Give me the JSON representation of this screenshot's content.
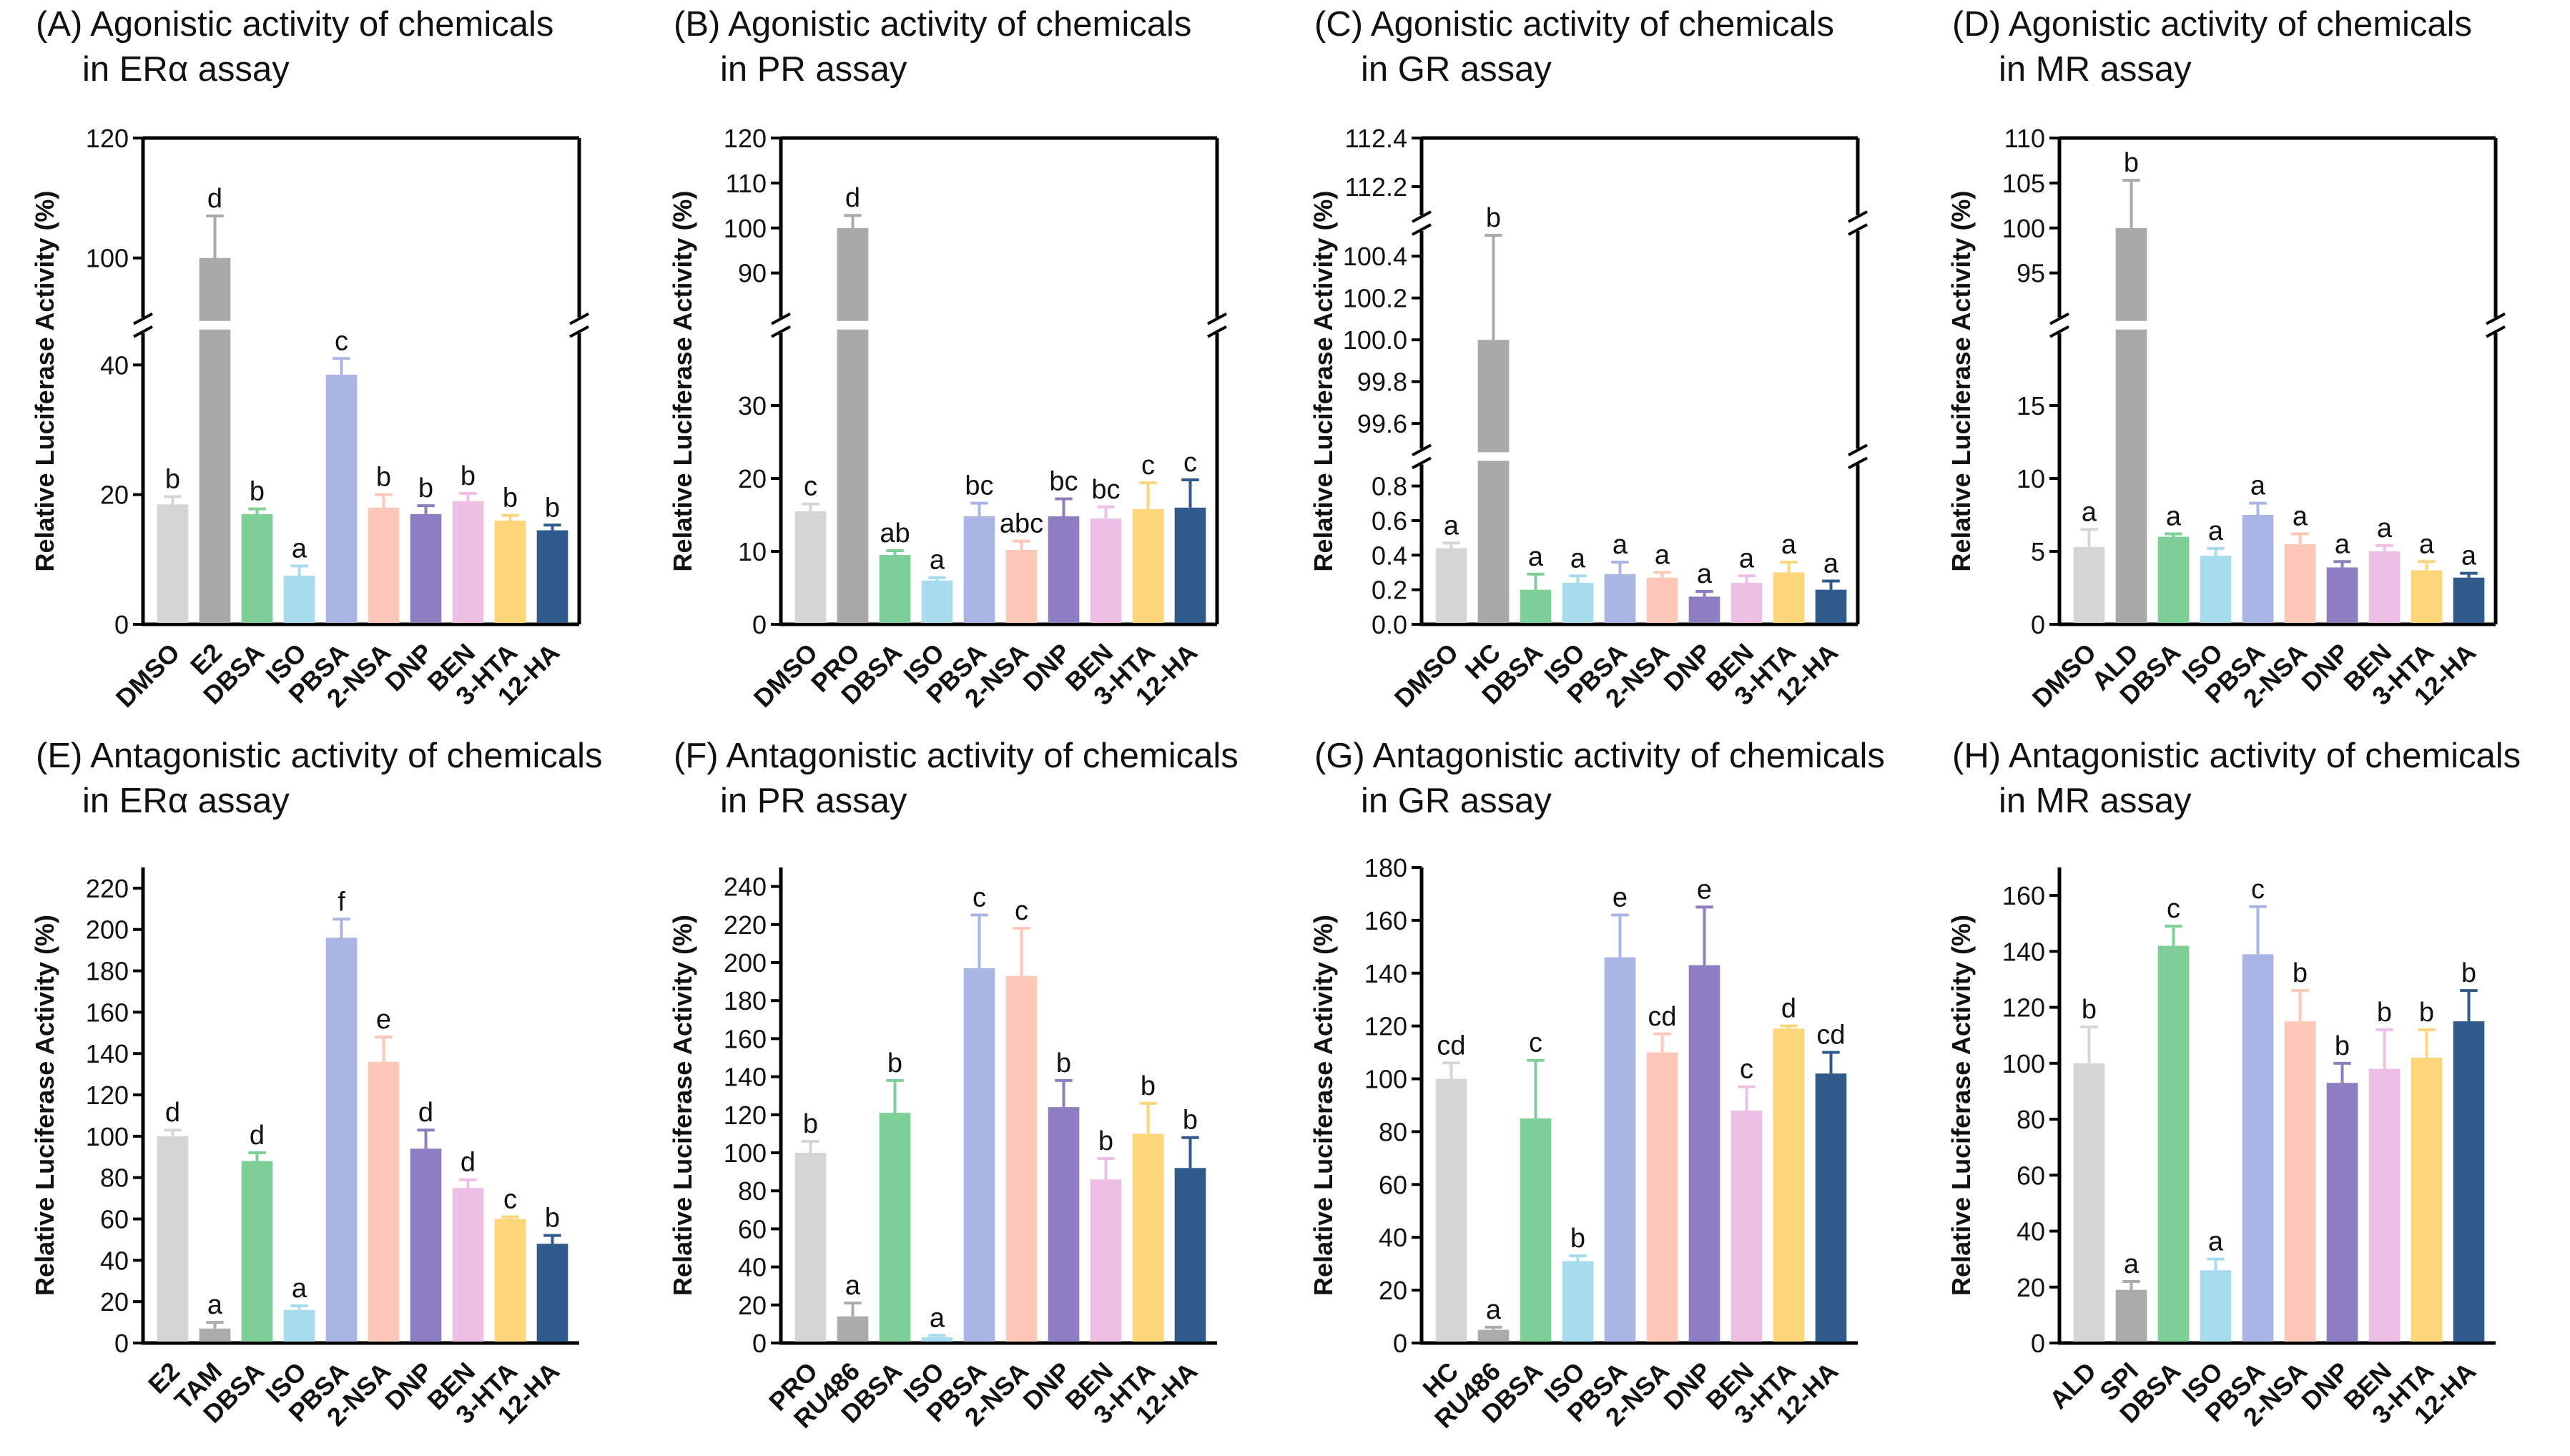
{
  "colors": {
    "DMSO": "#d5d5d5",
    "control_pos": "#a9a9a9",
    "control_ant": "#ababab",
    "DBSA": "#7dcf97",
    "ISO": "#a6dcee",
    "PBSA": "#a9b5e4",
    "2-NSA": "#fdc8b8",
    "DNP": "#8d7ec1",
    "BEN": "#edbfe4",
    "3-HTA": "#fdd57b",
    "12-HA": "#2e5a8c"
  },
  "chart_data": [
    {
      "id": "A",
      "type": "bar",
      "title_line1": "(A) Agonistic activity of chemicals",
      "title_line2": "in ERα assay",
      "ylabel": "Relative Luciferase Activity (%)",
      "categories": [
        "DMSO",
        "E2",
        "DBSA",
        "ISO",
        "PBSA",
        "2-NSA",
        "DNP",
        "BEN",
        "3-HTA",
        "12-HA"
      ],
      "values": [
        18.5,
        100,
        17,
        7.5,
        38.5,
        18,
        17,
        19,
        16,
        14.5
      ],
      "errors": [
        1.2,
        7,
        0.8,
        1.5,
        2.5,
        2,
        1.3,
        1.2,
        0.8,
        0.8
      ],
      "labels": [
        "b",
        "d",
        "b",
        "a",
        "c",
        "b",
        "b",
        "b",
        "b",
        "b"
      ],
      "broken": true,
      "lower": {
        "min": 0,
        "max": 45,
        "ticks": [
          0,
          20,
          40
        ]
      },
      "upper": {
        "min": 90,
        "max": 120,
        "ticks": [
          100,
          120
        ]
      }
    },
    {
      "id": "B",
      "type": "bar",
      "title_line1": "(B) Agonistic activity of chemicals",
      "title_line2": "in PR assay",
      "ylabel": "Relative Luciferase Activity (%)",
      "categories": [
        "DMSO",
        "PRO",
        "DBSA",
        "ISO",
        "PBSA",
        "2-NSA",
        "DNP",
        "BEN",
        "3-HTA",
        "12-HA"
      ],
      "values": [
        15.5,
        100,
        9.5,
        6,
        14.8,
        10.2,
        14.8,
        14.5,
        15.8,
        16
      ],
      "errors": [
        1,
        2.8,
        0.6,
        0.4,
        1.8,
        1.2,
        2.4,
        1.6,
        3.6,
        3.8
      ],
      "labels": [
        "c",
        "d",
        "ab",
        "a",
        "bc",
        "abc",
        "bc",
        "bc",
        "c",
        "c"
      ],
      "broken": true,
      "lower": {
        "min": 0,
        "max": 40,
        "ticks": [
          0,
          10,
          20,
          30
        ]
      },
      "upper": {
        "min": 80,
        "max": 120,
        "ticks": [
          90,
          100,
          110,
          120
        ]
      }
    },
    {
      "id": "C",
      "type": "bar",
      "title_line1": "(C) Agonistic activity of chemicals",
      "title_line2": "in GR assay",
      "ylabel": "Relative Luciferase Activity (%)",
      "categories": [
        "DMSO",
        "HC",
        "DBSA",
        "ISO",
        "PBSA",
        "2-NSA",
        "DNP",
        "BEN",
        "3-HTA",
        "12-HA"
      ],
      "values": [
        0.44,
        100,
        0.2,
        0.24,
        0.29,
        0.27,
        0.16,
        0.24,
        0.3,
        0.2
      ],
      "errors": [
        0.03,
        0.5,
        0.09,
        0.04,
        0.07,
        0.03,
        0.03,
        0.04,
        0.06,
        0.05
      ],
      "labels": [
        "a",
        "b",
        "a",
        "a",
        "a",
        "a",
        "a",
        "a",
        "a",
        "a"
      ],
      "broken": true,
      "double_break": true,
      "lower": {
        "min": 0,
        "max": 0.9,
        "ticks": [
          0.0,
          0.2,
          0.4,
          0.6,
          0.8
        ],
        "decimals": 1
      },
      "middle": {
        "min": 99.5,
        "max": 100.5,
        "ticks": [
          99.6,
          99.8,
          100.0,
          100.2,
          100.4
        ],
        "decimals": 1
      },
      "upper": {
        "min": 112.1,
        "max": 112.4,
        "ticks": [
          112.2,
          112.4
        ],
        "decimals": 1
      }
    },
    {
      "id": "D",
      "type": "bar",
      "title_line1": "(D) Agonistic activity of chemicals",
      "title_line2": "in MR assay",
      "ylabel": "Relative Luciferase Activity (%)",
      "categories": [
        "DMSO",
        "ALD",
        "DBSA",
        "ISO",
        "PBSA",
        "2-NSA",
        "DNP",
        "BEN",
        "3-HTA",
        "12-HA"
      ],
      "values": [
        5.3,
        100,
        6,
        4.7,
        7.5,
        5.5,
        3.9,
        5,
        3.7,
        3.2
      ],
      "errors": [
        1.2,
        5.3,
        0.2,
        0.5,
        0.8,
        0.7,
        0.4,
        0.4,
        0.6,
        0.3
      ],
      "labels": [
        "a",
        "b",
        "a",
        "a",
        "a",
        "a",
        "a",
        "a",
        "a",
        "a"
      ],
      "broken": true,
      "lower": {
        "min": 0,
        "max": 20,
        "ticks": [
          0,
          5,
          10,
          15
        ]
      },
      "upper": {
        "min": 90,
        "max": 110,
        "ticks": [
          95,
          100,
          105,
          110
        ]
      }
    },
    {
      "id": "E",
      "type": "bar",
      "title_line1": "(E) Antagonistic activity of chemicals",
      "title_line2": "in ERα assay",
      "ylabel": "Relative Luciferase Activity (%)",
      "categories": [
        "E2",
        "TAM",
        "DBSA",
        "ISO",
        "PBSA",
        "2-NSA",
        "DNP",
        "BEN",
        "3-HTA",
        "12-HA"
      ],
      "values": [
        100,
        7,
        88,
        16,
        196,
        136,
        94,
        75,
        60,
        48
      ],
      "errors": [
        3,
        3,
        4,
        2,
        9,
        12,
        9,
        4,
        1,
        4
      ],
      "labels": [
        "d",
        "a",
        "d",
        "a",
        "f",
        "e",
        "d",
        "d",
        "c",
        "b"
      ],
      "broken": false,
      "ylim": [
        0,
        230
      ],
      "ticks": [
        0,
        20,
        40,
        60,
        80,
        100,
        120,
        140,
        160,
        180,
        200,
        220
      ]
    },
    {
      "id": "F",
      "type": "bar",
      "title_line1": "(F) Antagonistic activity of chemicals",
      "title_line2": "in PR assay",
      "ylabel": "Relative Luciferase Activity (%)",
      "categories": [
        "PRO",
        "RU486",
        "DBSA",
        "ISO",
        "PBSA",
        "2-NSA",
        "DNP",
        "BEN",
        "3-HTA",
        "12-HA"
      ],
      "values": [
        100,
        14,
        121,
        3,
        197,
        193,
        124,
        86,
        110,
        92
      ],
      "errors": [
        6,
        7,
        17,
        1,
        28,
        25,
        14,
        11,
        16,
        16
      ],
      "labels": [
        "b",
        "a",
        "b",
        "a",
        "c",
        "c",
        "b",
        "b",
        "b",
        "b"
      ],
      "broken": false,
      "ylim": [
        0,
        250
      ],
      "ticks": [
        0,
        20,
        40,
        60,
        80,
        100,
        120,
        140,
        160,
        180,
        200,
        220,
        240
      ]
    },
    {
      "id": "G",
      "type": "bar",
      "title_line1": "(G) Antagonistic activity of chemicals",
      "title_line2": "in GR assay",
      "ylabel": "Relative Luciferase Activity (%)",
      "categories": [
        "HC",
        "RU486",
        "DBSA",
        "ISO",
        "PBSA",
        "2-NSA",
        "DNP",
        "BEN",
        "3-HTA",
        "12-HA"
      ],
      "values": [
        100,
        5,
        85,
        31,
        146,
        110,
        143,
        88,
        119,
        102
      ],
      "errors": [
        6,
        1,
        22,
        2,
        16,
        7,
        22,
        9,
        1,
        8
      ],
      "labels": [
        "cd",
        "a",
        "c",
        "b",
        "e",
        "cd",
        "e",
        "c",
        "d",
        "cd"
      ],
      "broken": false,
      "ylim": [
        0,
        180
      ],
      "ticks": [
        0,
        20,
        40,
        60,
        80,
        100,
        120,
        140,
        160,
        180
      ]
    },
    {
      "id": "H",
      "type": "bar",
      "title_line1": "(H) Antagonistic activity of chemicals",
      "title_line2": "in MR assay",
      "ylabel": "Relative Luciferase Activity (%)",
      "categories": [
        "ALD",
        "SPI",
        "DBSA",
        "ISO",
        "PBSA",
        "2-NSA",
        "DNP",
        "BEN",
        "3-HTA",
        "12-HA"
      ],
      "values": [
        100,
        19,
        142,
        26,
        139,
        115,
        93,
        98,
        102,
        115
      ],
      "errors": [
        13,
        3,
        7,
        4,
        17,
        11,
        7,
        14,
        10,
        11
      ],
      "labels": [
        "b",
        "a",
        "c",
        "a",
        "c",
        "b",
        "b",
        "b",
        "b",
        "b"
      ],
      "broken": false,
      "ylim": [
        0,
        170
      ],
      "ticks": [
        0,
        20,
        40,
        60,
        80,
        100,
        120,
        140,
        160
      ]
    }
  ]
}
